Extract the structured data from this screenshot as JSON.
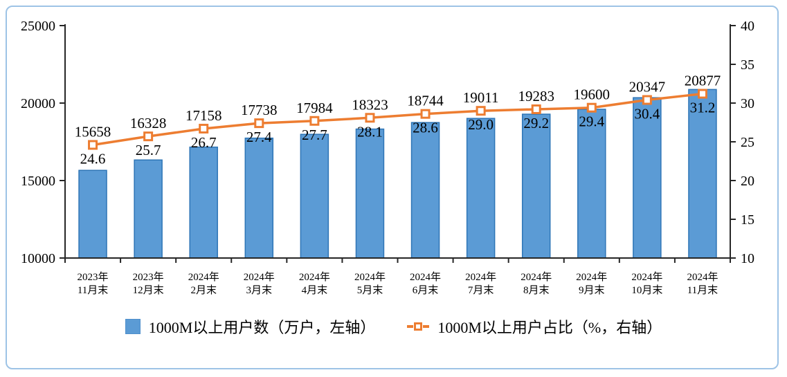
{
  "chart_data": {
    "type": "combo-bar-line",
    "title": "",
    "categories": [
      [
        "2023年",
        "11月末"
      ],
      [
        "2023年",
        "12月末"
      ],
      [
        "2024年",
        "2月末"
      ],
      [
        "2024年",
        "3月末"
      ],
      [
        "2024年",
        "4月末"
      ],
      [
        "2024年",
        "5月末"
      ],
      [
        "2024年",
        "6月末"
      ],
      [
        "2024年",
        "7月末"
      ],
      [
        "2024年",
        "8月末"
      ],
      [
        "2024年",
        "9月末"
      ],
      [
        "2024年",
        "10月末"
      ],
      [
        "2024年",
        "11月末"
      ]
    ],
    "series": [
      {
        "name": "1000M以上用户数（万户，左轴）",
        "type": "bar",
        "axis": "left",
        "values": [
          15658,
          16328,
          17158,
          17738,
          17984,
          18323,
          18744,
          19011,
          19283,
          19600,
          20347,
          20877
        ],
        "color": "#5B9BD5",
        "border_color": "#2E75B6"
      },
      {
        "name": "1000M以上用户占比（%，右轴）",
        "type": "line",
        "axis": "right",
        "values": [
          24.6,
          25.7,
          26.7,
          27.4,
          27.7,
          28.1,
          28.6,
          29.0,
          29.2,
          29.4,
          30.4,
          31.2
        ],
        "color": "#ED7D31",
        "marker": "open-square"
      }
    ],
    "left_axis": {
      "min": 10000,
      "max": 25000,
      "step": 5000,
      "ticks": [
        10000,
        15000,
        20000,
        25000
      ]
    },
    "right_axis": {
      "min": 10,
      "max": 40,
      "step": 5,
      "ticks": [
        10,
        15,
        20,
        25,
        30,
        35,
        40
      ]
    },
    "grid": false,
    "legend_position": "bottom"
  },
  "colors": {
    "axis": "#262626",
    "frame_border": "#9DC3E6",
    "text": "#000000",
    "marker_fill": "#ffffff"
  }
}
